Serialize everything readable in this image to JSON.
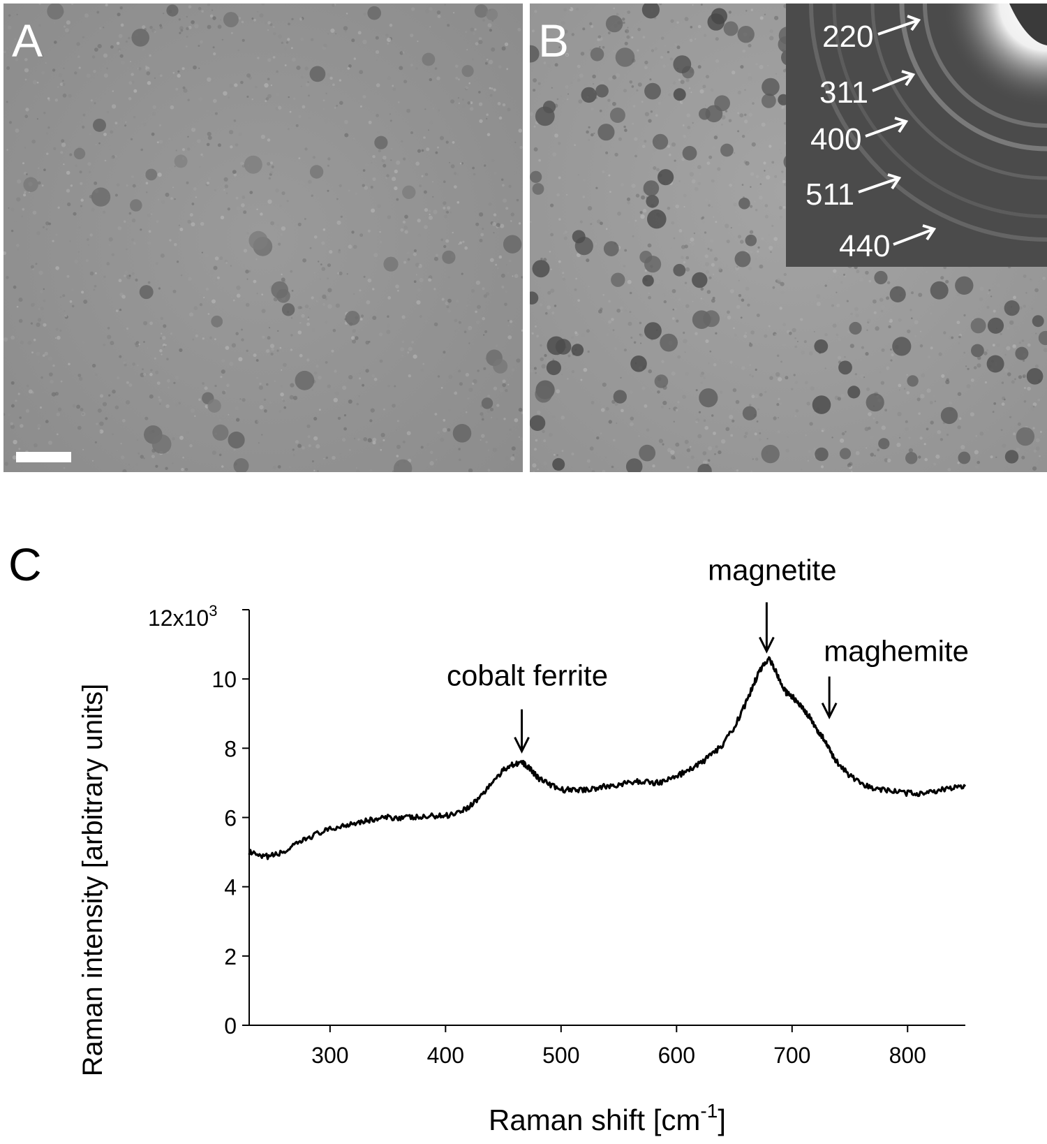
{
  "panels": {
    "a": {
      "letter": "A"
    },
    "b": {
      "letter": "B",
      "diffraction_labels": [
        "220",
        "311",
        "400",
        "511",
        "440"
      ]
    },
    "c": {
      "letter": "C"
    }
  },
  "chart_data": {
    "type": "line",
    "xlabel": "Raman shift [cm-1]",
    "xlabel_main": "Raman shift [cm",
    "xlabel_sup": "-1",
    "xlabel_close": "]",
    "ylabel": "Raman intensity [arbitrary units]",
    "y_multiplier": "12x10",
    "y_multiplier_sup": "3",
    "xlim": [
      230,
      850
    ],
    "ylim": [
      0,
      12000
    ],
    "x_ticks": [
      300,
      400,
      500,
      600,
      700,
      800
    ],
    "y_ticks": [
      0,
      2,
      4,
      6,
      8,
      10
    ],
    "y_tick_values": [
      0,
      2000,
      4000,
      6000,
      8000,
      10000,
      12000
    ],
    "grid": false,
    "series": [
      {
        "x": [
          230,
          240,
          250,
          260,
          270,
          280,
          290,
          300,
          310,
          320,
          330,
          340,
          350,
          360,
          370,
          380,
          390,
          400,
          410,
          420,
          430,
          440,
          450,
          455,
          460,
          465,
          470,
          475,
          480,
          490,
          500,
          510,
          520,
          530,
          540,
          550,
          560,
          570,
          580,
          590,
          600,
          610,
          620,
          630,
          640,
          650,
          660,
          665,
          670,
          675,
          680,
          685,
          690,
          695,
          700,
          705,
          710,
          715,
          720,
          725,
          730,
          735,
          740,
          750,
          760,
          770,
          780,
          790,
          800,
          810,
          820,
          830,
          840,
          850
        ],
        "y": [
          5000,
          4850,
          4900,
          5000,
          5200,
          5400,
          5550,
          5650,
          5750,
          5850,
          5900,
          5950,
          6000,
          6000,
          6000,
          6000,
          6050,
          6050,
          6150,
          6300,
          6600,
          7000,
          7350,
          7500,
          7550,
          7600,
          7500,
          7350,
          7150,
          6950,
          6800,
          6800,
          6800,
          6850,
          6900,
          6950,
          7000,
          7050,
          7000,
          7050,
          7200,
          7350,
          7550,
          7800,
          8100,
          8600,
          9300,
          9700,
          10100,
          10400,
          10600,
          10300,
          9900,
          9600,
          9500,
          9300,
          9100,
          8900,
          8600,
          8400,
          8100,
          7800,
          7550,
          7200,
          6950,
          6850,
          6800,
          6750,
          6700,
          6700,
          6750,
          6800,
          6850,
          6900
        ]
      }
    ],
    "annotations": [
      {
        "text": "cobalt ferrite",
        "x": 466,
        "y": 7550
      },
      {
        "text": "magnetite",
        "x": 678,
        "y": 10600
      },
      {
        "text": "maghemite",
        "x": 725,
        "y": 8700
      }
    ],
    "colors": {
      "line": "#000000",
      "axis": "#000000"
    }
  }
}
